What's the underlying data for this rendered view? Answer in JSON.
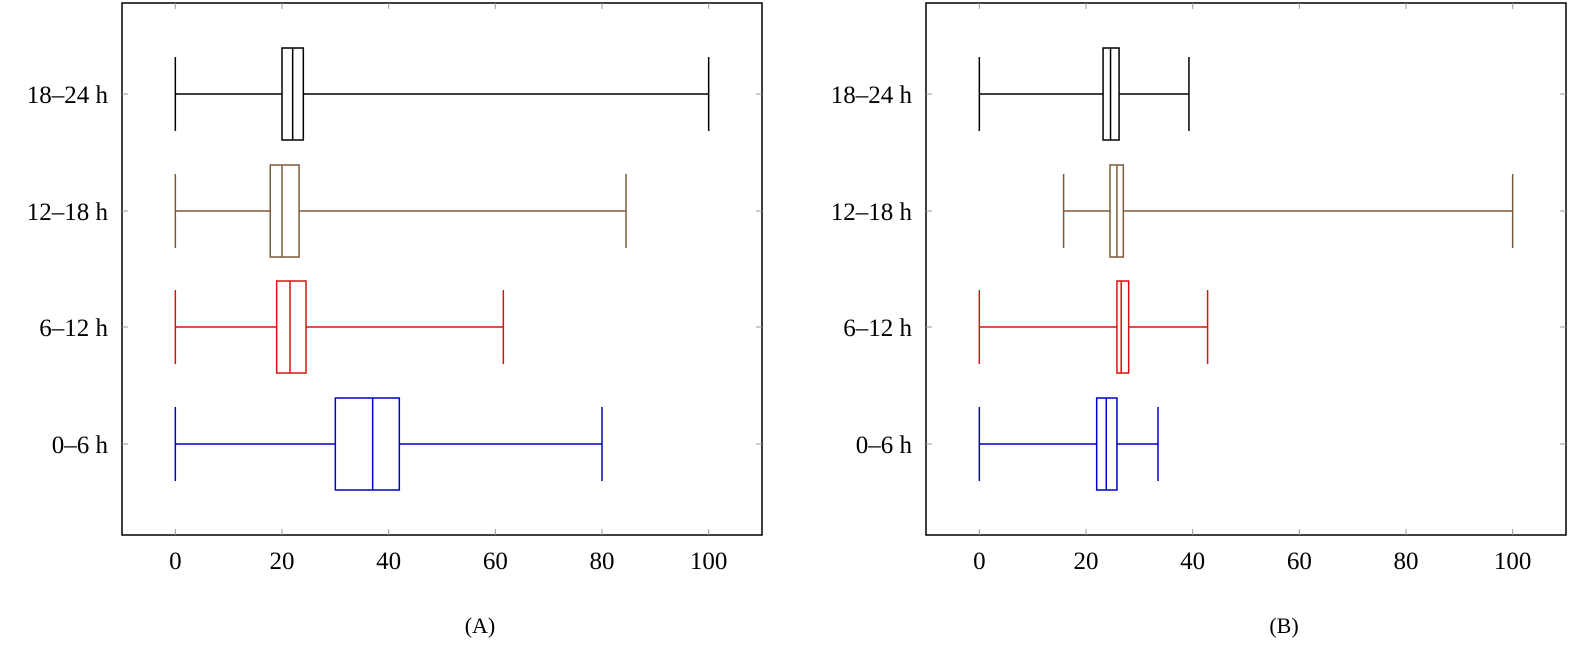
{
  "chart_data": [
    {
      "type": "boxplot",
      "orientation": "horizontal",
      "panel_label": "(A)",
      "xlim": [
        -10,
        110
      ],
      "xticks": [
        0,
        20,
        40,
        60,
        80,
        100
      ],
      "grid": false,
      "categories": [
        "0–6 h",
        "6–12 h",
        "12–18 h",
        "18–24 h"
      ],
      "series": [
        {
          "category": "0–6 h",
          "color": "#0000cc",
          "min": 0,
          "q1": 30,
          "median": 37,
          "q3": 42,
          "max": 80
        },
        {
          "category": "6–12 h",
          "color": "#dd1111",
          "min": 0,
          "q1": 19,
          "median": 21.5,
          "q3": 24.5,
          "max": 61.5
        },
        {
          "category": "12–18 h",
          "color": "#7a5c3a",
          "min": 0,
          "q1": 17.8,
          "median": 20,
          "q3": 23.2,
          "max": 84.5
        },
        {
          "category": "18–24 h",
          "color": "#000000",
          "min": 0,
          "q1": 20,
          "median": 22,
          "q3": 24,
          "max": 100
        }
      ]
    },
    {
      "type": "boxplot",
      "orientation": "horizontal",
      "panel_label": "(B)",
      "xlim": [
        -10,
        110
      ],
      "xticks": [
        0,
        20,
        40,
        60,
        80,
        100
      ],
      "grid": false,
      "categories": [
        "0–6 h",
        "6–12 h",
        "12–18 h",
        "18–24 h"
      ],
      "series": [
        {
          "category": "0–6 h",
          "color": "#0000cc",
          "min": 0,
          "q1": 22,
          "median": 23.8,
          "q3": 25.8,
          "max": 33.5
        },
        {
          "category": "6–12 h",
          "color": "#dd1111",
          "min": 0,
          "q1": 25.8,
          "median": 26.6,
          "q3": 28,
          "max": 42.8
        },
        {
          "category": "12–18 h",
          "color": "#7a5c3a",
          "min": 15.8,
          "q1": 24.5,
          "median": 25.8,
          "q3": 27,
          "max": 100
        },
        {
          "category": "18–24 h",
          "color": "#000000",
          "min": 0,
          "q1": 23.2,
          "median": 24.6,
          "q3": 26.2,
          "max": 39.3
        }
      ]
    }
  ]
}
